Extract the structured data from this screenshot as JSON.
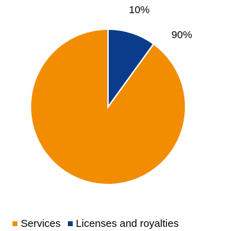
{
  "chart_data": {
    "type": "pie",
    "categories": [
      "Services",
      "Licenses and royalties"
    ],
    "values": [
      90,
      10
    ],
    "data_labels": [
      "90%",
      "10%"
    ],
    "colors": [
      "#F28C00",
      "#0B3C8C"
    ],
    "legend": {
      "position": "bottom",
      "items": [
        {
          "label": "Services",
          "color": "#F28C00"
        },
        {
          "label": "Licenses and royalties",
          "color": "#0B3C8C"
        }
      ]
    }
  }
}
